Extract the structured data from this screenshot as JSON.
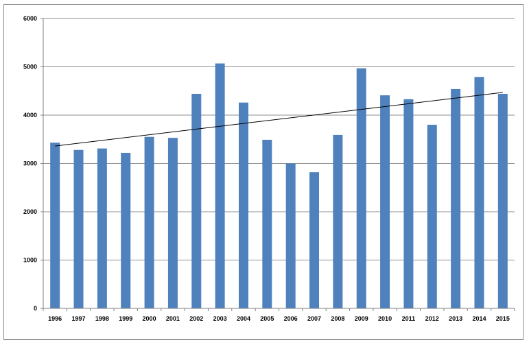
{
  "chart_data": {
    "type": "bar",
    "title": "",
    "xlabel": "",
    "ylabel": "",
    "categories": [
      "1996",
      "1997",
      "1998",
      "1999",
      "2000",
      "2001",
      "2002",
      "2003",
      "2004",
      "2005",
      "2006",
      "2007",
      "2008",
      "2009",
      "2010",
      "2011",
      "2012",
      "2013",
      "2014",
      "2015"
    ],
    "series": [
      {
        "values": [
          3430,
          3280,
          3310,
          3220,
          3550,
          3530,
          4440,
          5070,
          4260,
          3490,
          3000,
          2820,
          3590,
          4970,
          4410,
          4330,
          3800,
          4540,
          4790,
          4440
        ],
        "color": "#4f81bd"
      }
    ],
    "trendline": {
      "type": "linear",
      "start": 3360,
      "end": 4470,
      "color": "#000000"
    },
    "ylim": [
      0,
      6000
    ],
    "yticks": [
      "0",
      "1000",
      "2000",
      "3000",
      "4000",
      "5000",
      "6000"
    ],
    "grid": true,
    "legend": "none"
  }
}
